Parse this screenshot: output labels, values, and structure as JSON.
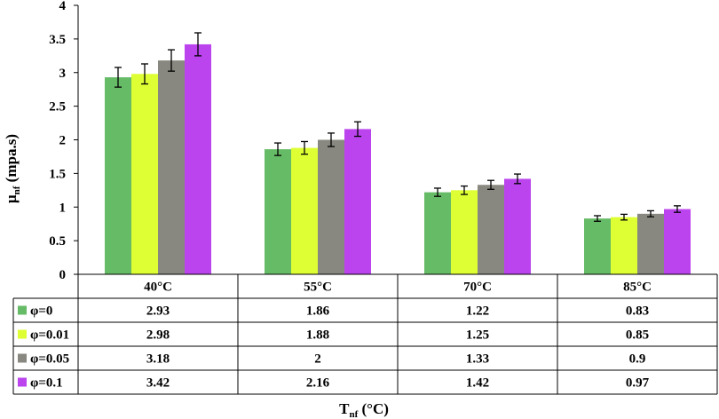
{
  "chart_data": {
    "type": "bar",
    "title": "",
    "xlabel": "Tnf (°C)",
    "xlabel_main": "T",
    "xlabel_sub": "nf",
    "xlabel_unit": " (°C)",
    "ylabel": "μnf (mpa.s)",
    "ylabel_main": "μ",
    "ylabel_sub": "nf",
    "ylabel_unit": " (mpa.s)",
    "ylim": [
      0,
      4
    ],
    "yticks": [
      "0",
      "0.5",
      "1",
      "1.5",
      "2",
      "2.5",
      "3",
      "3.5",
      "4"
    ],
    "ytick_values": [
      0,
      0.5,
      1,
      1.5,
      2,
      2.5,
      3,
      3.5,
      4
    ],
    "categories": [
      "40°C",
      "55°C",
      "70°C",
      "85°C"
    ],
    "error_fraction": 0.05,
    "legend_position": "data-table",
    "series": [
      {
        "name": "φ=0",
        "color": "#66bb66",
        "values": [
          2.93,
          1.86,
          1.22,
          0.83
        ],
        "labels": [
          "2.93",
          "1.86",
          "1.22",
          "0.83"
        ]
      },
      {
        "name": "φ=0.01",
        "color": "#ddff33",
        "values": [
          2.98,
          1.88,
          1.25,
          0.85
        ],
        "labels": [
          "2.98",
          "1.88",
          "1.25",
          "0.85"
        ]
      },
      {
        "name": "φ=0.05",
        "color": "#888880",
        "values": [
          3.18,
          2.0,
          1.33,
          0.9
        ],
        "labels": [
          "3.18",
          "2",
          "1.33",
          "0.9"
        ]
      },
      {
        "name": "φ=0.1",
        "color": "#bb44ee",
        "values": [
          3.42,
          2.16,
          1.42,
          0.97
        ],
        "labels": [
          "3.42",
          "2.16",
          "1.42",
          "0.97"
        ]
      }
    ]
  }
}
